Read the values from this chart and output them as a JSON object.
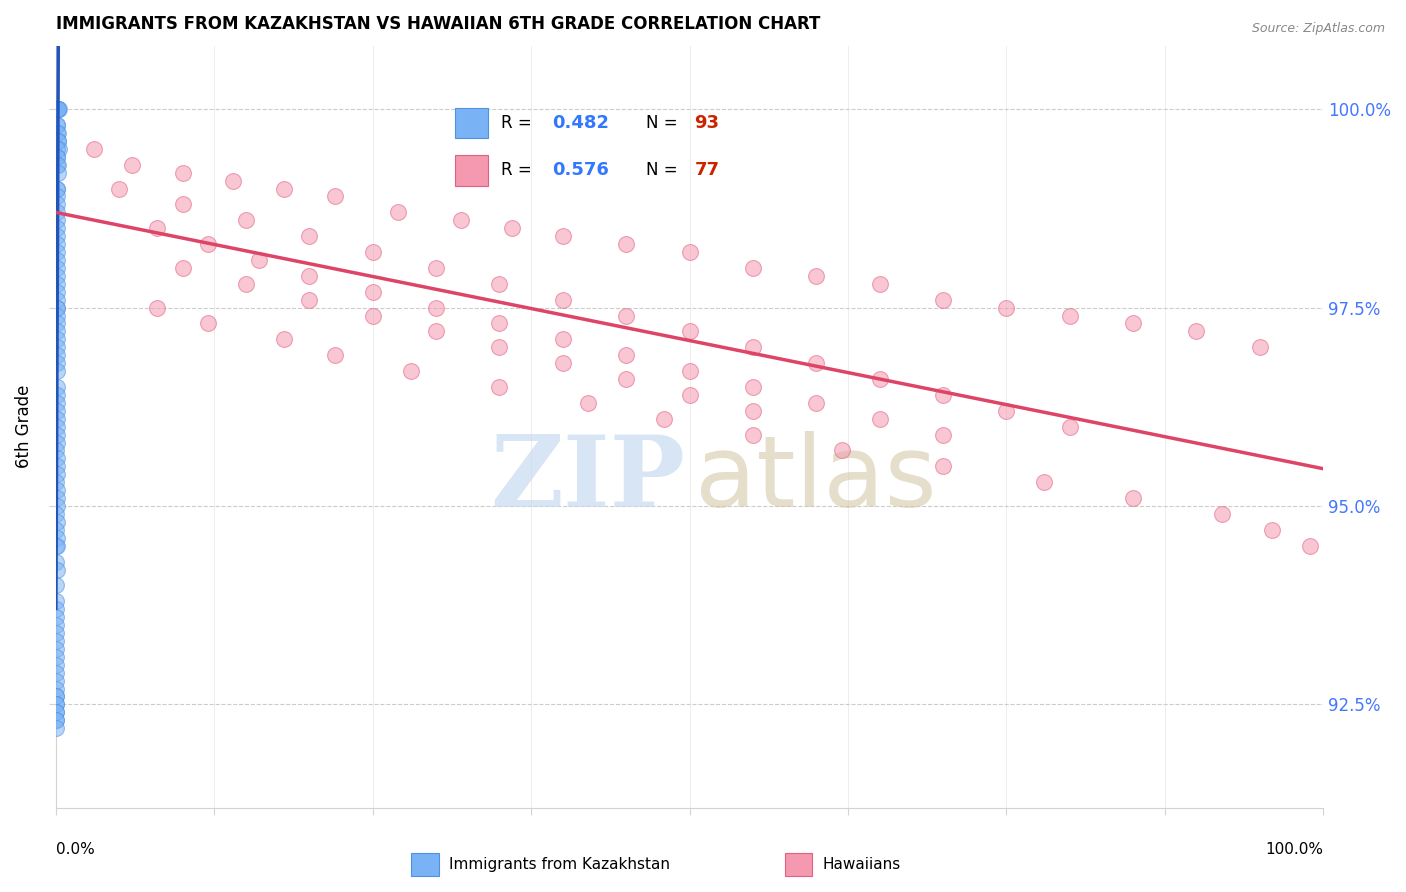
{
  "title": "IMMIGRANTS FROM KAZAKHSTAN VS HAWAIIAN 6TH GRADE CORRELATION CHART",
  "source": "Source: ZipAtlas.com",
  "ylabel": "6th Grade",
  "ylabel_tick_vals": [
    92.5,
    95.0,
    97.5,
    100.0
  ],
  "xmin": 0.0,
  "xmax": 100.0,
  "ymin": 91.2,
  "ymax": 100.8,
  "legend_blue_label": "Immigrants from Kazakhstan",
  "legend_pink_label": "Hawaiians",
  "legend_R_blue": "0.482",
  "legend_N_blue": "93",
  "legend_R_pink": "0.576",
  "legend_N_pink": "77",
  "blue_color": "#7ab3f5",
  "blue_edge_color": "#5090e0",
  "pink_color": "#f599b0",
  "pink_edge_color": "#e06080",
  "blue_line_color": "#2255bb",
  "pink_line_color": "#dd4466",
  "watermark_zip_color": "#c8daf0",
  "watermark_atlas_color": "#d4c8a8",
  "grid_color": "#cccccc",
  "right_tick_color": "#4477ff",
  "blue_scatter_x": [
    0.05,
    0.08,
    0.1,
    0.12,
    0.15,
    0.18,
    0.2,
    0.22,
    0.05,
    0.08,
    0.1,
    0.15,
    0.18,
    0.2,
    0.25,
    0.05,
    0.08,
    0.1,
    0.12,
    0.15,
    0.2,
    0.05,
    0.08,
    0.1,
    0.12,
    0.05,
    0.08,
    0.1,
    0.05,
    0.08,
    0.05,
    0.08,
    0.1,
    0.12,
    0.05,
    0.08,
    0.1,
    0.05,
    0.08,
    0.1,
    0.12,
    0.05,
    0.08,
    0.05,
    0.08,
    0.1,
    0.05,
    0.08,
    0.05,
    0.06,
    0.05,
    0.08,
    0.05,
    0.06,
    0.05,
    0.04,
    0.05,
    0.06,
    0.05,
    0.04,
    0.05,
    0.06,
    0.05,
    0.04,
    0.05,
    0.04,
    0.05,
    0.04,
    0.05,
    0.04,
    0.05,
    0.04,
    0.03,
    0.04,
    0.03,
    0.04,
    0.03,
    0.04,
    0.03,
    0.04,
    0.03,
    0.04,
    0.03,
    0.04,
    0.03,
    0.04,
    0.03,
    0.04,
    0.03,
    0.02,
    0.03,
    0.02,
    0.03
  ],
  "blue_scatter_y": [
    100.0,
    100.0,
    100.0,
    100.0,
    100.0,
    100.0,
    100.0,
    100.0,
    99.8,
    99.8,
    99.7,
    99.7,
    99.6,
    99.6,
    99.5,
    99.5,
    99.4,
    99.4,
    99.3,
    99.3,
    99.2,
    99.0,
    99.0,
    98.9,
    98.8,
    98.7,
    98.6,
    98.5,
    98.4,
    98.3,
    98.2,
    98.1,
    98.0,
    97.9,
    97.8,
    97.7,
    97.6,
    97.5,
    97.5,
    97.4,
    97.3,
    97.2,
    97.1,
    97.0,
    96.9,
    96.8,
    96.7,
    96.5,
    96.4,
    96.3,
    96.2,
    96.1,
    96.0,
    95.9,
    95.8,
    95.7,
    95.6,
    95.5,
    95.4,
    95.3,
    95.2,
    95.1,
    95.0,
    94.9,
    94.8,
    94.7,
    94.6,
    94.5,
    94.5,
    94.3,
    94.2,
    94.0,
    93.8,
    93.7,
    93.6,
    93.5,
    93.4,
    93.3,
    93.2,
    93.1,
    93.0,
    92.9,
    92.8,
    92.7,
    92.6,
    92.6,
    92.5,
    92.5,
    92.4,
    92.4,
    92.3,
    92.3,
    92.2
  ],
  "pink_scatter_x": [
    3.0,
    6.0,
    10.0,
    14.0,
    18.0,
    22.0,
    27.0,
    32.0,
    36.0,
    40.0,
    45.0,
    50.0,
    55.0,
    60.0,
    65.0,
    70.0,
    75.0,
    80.0,
    85.0,
    90.0,
    95.0,
    5.0,
    10.0,
    15.0,
    20.0,
    25.0,
    30.0,
    35.0,
    40.0,
    45.0,
    50.0,
    55.0,
    60.0,
    65.0,
    70.0,
    75.0,
    80.0,
    8.0,
    12.0,
    16.0,
    20.0,
    25.0,
    30.0,
    35.0,
    40.0,
    45.0,
    50.0,
    55.0,
    60.0,
    65.0,
    70.0,
    10.0,
    15.0,
    20.0,
    25.0,
    30.0,
    35.0,
    40.0,
    45.0,
    50.0,
    55.0,
    8.0,
    12.0,
    18.0,
    22.0,
    28.0,
    35.0,
    42.0,
    48.0,
    55.0,
    62.0,
    70.0,
    78.0,
    85.0,
    92.0,
    96.0,
    99.0
  ],
  "pink_scatter_y": [
    99.5,
    99.3,
    99.2,
    99.1,
    99.0,
    98.9,
    98.7,
    98.6,
    98.5,
    98.4,
    98.3,
    98.2,
    98.0,
    97.9,
    97.8,
    97.6,
    97.5,
    97.4,
    97.3,
    97.2,
    97.0,
    99.0,
    98.8,
    98.6,
    98.4,
    98.2,
    98.0,
    97.8,
    97.6,
    97.4,
    97.2,
    97.0,
    96.8,
    96.6,
    96.4,
    96.2,
    96.0,
    98.5,
    98.3,
    98.1,
    97.9,
    97.7,
    97.5,
    97.3,
    97.1,
    96.9,
    96.7,
    96.5,
    96.3,
    96.1,
    95.9,
    98.0,
    97.8,
    97.6,
    97.4,
    97.2,
    97.0,
    96.8,
    96.6,
    96.4,
    96.2,
    97.5,
    97.3,
    97.1,
    96.9,
    96.7,
    96.5,
    96.3,
    96.1,
    95.9,
    95.7,
    95.5,
    95.3,
    95.1,
    94.9,
    94.7,
    94.5
  ]
}
